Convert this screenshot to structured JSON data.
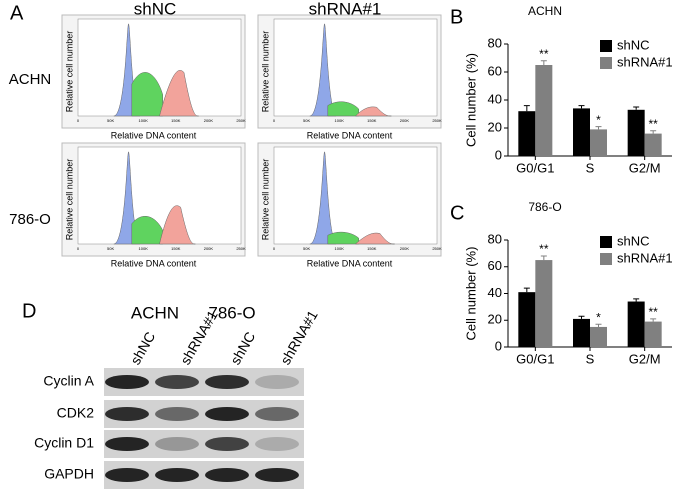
{
  "panel_a": {
    "label": "A",
    "columns": [
      "shNC",
      "shRNA#1"
    ],
    "rows": [
      "ACHN",
      "786-O"
    ],
    "y_label": "Relative cell number",
    "x_label": "Relative DNA content",
    "hist_xticks": [
      "0",
      "50K",
      "100K",
      "150K",
      "200K",
      "250K"
    ]
  },
  "panel_d": {
    "label": "D",
    "cell_lines": [
      "ACHN",
      "786-O"
    ],
    "lanes": [
      "shNC",
      "shRNA#1",
      "shNC",
      "shRNA#1"
    ],
    "proteins": [
      "Cyclin A",
      "CDK2",
      "Cyclin D1",
      "GAPDH"
    ]
  },
  "chart_data": [
    {
      "type": "bar",
      "panel": "B",
      "title": "ACHN",
      "y_label": "Cell number (%)",
      "categories": [
        "G0/G1",
        "S",
        "G2/M"
      ],
      "ylim": [
        0,
        80
      ],
      "yticks": [
        0,
        20,
        40,
        60,
        80
      ],
      "legend": "top-right",
      "series": [
        {
          "name": "shNC",
          "color": "#000000",
          "values": [
            32,
            34,
            33
          ],
          "errors": [
            4,
            2,
            2
          ]
        },
        {
          "name": "shRNA#1",
          "color": "#808080",
          "values": [
            65,
            19,
            16
          ],
          "errors": [
            3,
            2,
            2
          ],
          "annotations": [
            "**",
            "*",
            "**"
          ]
        }
      ]
    },
    {
      "type": "bar",
      "panel": "C",
      "title": "786-O",
      "y_label": "Cell number (%)",
      "categories": [
        "G0/G1",
        "S",
        "G2/M"
      ],
      "ylim": [
        0,
        80
      ],
      "yticks": [
        0,
        20,
        40,
        60,
        80
      ],
      "legend": "top-right",
      "series": [
        {
          "name": "shNC",
          "color": "#000000",
          "values": [
            41,
            21,
            34
          ],
          "errors": [
            3,
            2,
            2
          ]
        },
        {
          "name": "shRNA#1",
          "color": "#808080",
          "values": [
            65,
            15,
            19
          ],
          "errors": [
            3,
            2,
            2
          ],
          "annotations": [
            "**",
            "*",
            "**"
          ]
        }
      ]
    }
  ]
}
